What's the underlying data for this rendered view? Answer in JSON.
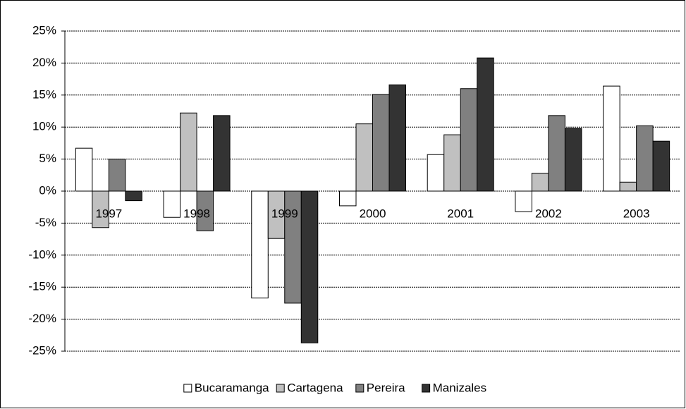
{
  "chart_data": {
    "type": "bar",
    "categories": [
      "1997",
      "1998",
      "1999",
      "2000",
      "2001",
      "2002",
      "2003"
    ],
    "series": [
      {
        "name": "Bucaramanga",
        "color": "#ffffff",
        "values": [
          6.7,
          -4.1,
          -16.7,
          -2.3,
          5.7,
          -3.2,
          16.4
        ]
      },
      {
        "name": "Cartagena",
        "color": "#c0c0c0",
        "values": [
          -5.7,
          12.2,
          -7.4,
          10.5,
          8.8,
          2.8,
          1.4
        ]
      },
      {
        "name": "Pereira",
        "color": "#808080",
        "values": [
          5.0,
          -6.2,
          -17.5,
          15.1,
          16.0,
          11.8,
          10.2
        ]
      },
      {
        "name": "Manizales",
        "color": "#333333",
        "values": [
          -1.5,
          11.8,
          -23.7,
          16.6,
          20.8,
          9.8,
          7.8
        ]
      }
    ],
    "ylim": [
      -25,
      25
    ],
    "yticks": [
      {
        "value": -25,
        "label": "-25%"
      },
      {
        "value": -20,
        "label": "-20%"
      },
      {
        "value": -15,
        "label": "-15%"
      },
      {
        "value": -10,
        "label": "-10%"
      },
      {
        "value": -5,
        "label": "-5%"
      },
      {
        "value": 0,
        "label": "0%"
      },
      {
        "value": 5,
        "label": "5%"
      },
      {
        "value": 10,
        "label": "10%"
      },
      {
        "value": 15,
        "label": "15%"
      },
      {
        "value": 20,
        "label": "20%"
      },
      {
        "value": 25,
        "label": "25%"
      }
    ],
    "grid": true,
    "legend": "bottom"
  }
}
